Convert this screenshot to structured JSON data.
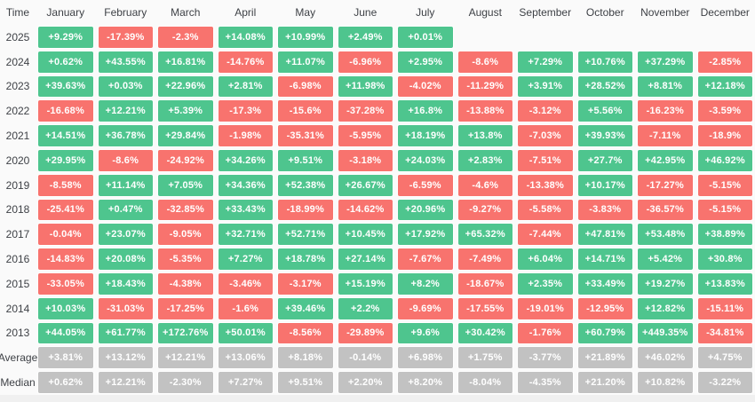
{
  "table": {
    "corner_label": "Time",
    "months": [
      "January",
      "February",
      "March",
      "April",
      "May",
      "June",
      "July",
      "August",
      "September",
      "October",
      "November",
      "December"
    ],
    "rows": [
      {
        "label": "2025",
        "type": "year",
        "values": [
          "+9.29%",
          "-17.39%",
          "-2.3%",
          "+14.08%",
          "+10.99%",
          "+2.49%",
          "+0.01%",
          "",
          "",
          "",
          "",
          ""
        ]
      },
      {
        "label": "2024",
        "type": "year",
        "values": [
          "+0.62%",
          "+43.55%",
          "+16.81%",
          "-14.76%",
          "+11.07%",
          "-6.96%",
          "+2.95%",
          "-8.6%",
          "+7.29%",
          "+10.76%",
          "+37.29%",
          "-2.85%"
        ]
      },
      {
        "label": "2023",
        "type": "year",
        "values": [
          "+39.63%",
          "+0.03%",
          "+22.96%",
          "+2.81%",
          "-6.98%",
          "+11.98%",
          "-4.02%",
          "-11.29%",
          "+3.91%",
          "+28.52%",
          "+8.81%",
          "+12.18%"
        ]
      },
      {
        "label": "2022",
        "type": "year",
        "values": [
          "-16.68%",
          "+12.21%",
          "+5.39%",
          "-17.3%",
          "-15.6%",
          "-37.28%",
          "+16.8%",
          "-13.88%",
          "-3.12%",
          "+5.56%",
          "-16.23%",
          "-3.59%"
        ]
      },
      {
        "label": "2021",
        "type": "year",
        "values": [
          "+14.51%",
          "+36.78%",
          "+29.84%",
          "-1.98%",
          "-35.31%",
          "-5.95%",
          "+18.19%",
          "+13.8%",
          "-7.03%",
          "+39.93%",
          "-7.11%",
          "-18.9%"
        ]
      },
      {
        "label": "2020",
        "type": "year",
        "values": [
          "+29.95%",
          "-8.6%",
          "-24.92%",
          "+34.26%",
          "+9.51%",
          "-3.18%",
          "+24.03%",
          "+2.83%",
          "-7.51%",
          "+27.7%",
          "+42.95%",
          "+46.92%"
        ]
      },
      {
        "label": "2019",
        "type": "year",
        "values": [
          "-8.58%",
          "+11.14%",
          "+7.05%",
          "+34.36%",
          "+52.38%",
          "+26.67%",
          "-6.59%",
          "-4.6%",
          "-13.38%",
          "+10.17%",
          "-17.27%",
          "-5.15%"
        ]
      },
      {
        "label": "2018",
        "type": "year",
        "values": [
          "-25.41%",
          "+0.47%",
          "-32.85%",
          "+33.43%",
          "-18.99%",
          "-14.62%",
          "+20.96%",
          "-9.27%",
          "-5.58%",
          "-3.83%",
          "-36.57%",
          "-5.15%"
        ]
      },
      {
        "label": "2017",
        "type": "year",
        "values": [
          "-0.04%",
          "+23.07%",
          "-9.05%",
          "+32.71%",
          "+52.71%",
          "+10.45%",
          "+17.92%",
          "+65.32%",
          "-7.44%",
          "+47.81%",
          "+53.48%",
          "+38.89%"
        ]
      },
      {
        "label": "2016",
        "type": "year",
        "values": [
          "-14.83%",
          "+20.08%",
          "-5.35%",
          "+7.27%",
          "+18.78%",
          "+27.14%",
          "-7.67%",
          "-7.49%",
          "+6.04%",
          "+14.71%",
          "+5.42%",
          "+30.8%"
        ]
      },
      {
        "label": "2015",
        "type": "year",
        "values": [
          "-33.05%",
          "+18.43%",
          "-4.38%",
          "-3.46%",
          "-3.17%",
          "+15.19%",
          "+8.2%",
          "-18.67%",
          "+2.35%",
          "+33.49%",
          "+19.27%",
          "+13.83%"
        ]
      },
      {
        "label": "2014",
        "type": "year",
        "values": [
          "+10.03%",
          "-31.03%",
          "-17.25%",
          "-1.6%",
          "+39.46%",
          "+2.2%",
          "-9.69%",
          "-17.55%",
          "-19.01%",
          "-12.95%",
          "+12.82%",
          "-15.11%"
        ]
      },
      {
        "label": "2013",
        "type": "year",
        "values": [
          "+44.05%",
          "+61.77%",
          "+172.76%",
          "+50.01%",
          "-8.56%",
          "-29.89%",
          "+9.6%",
          "+30.42%",
          "-1.76%",
          "+60.79%",
          "+449.35%",
          "-34.81%"
        ]
      },
      {
        "label": "Average",
        "type": "stat",
        "values": [
          "+3.81%",
          "+13.12%",
          "+12.21%",
          "+13.06%",
          "+8.18%",
          "-0.14%",
          "+6.98%",
          "+1.75%",
          "-3.77%",
          "+21.89%",
          "+46.02%",
          "+4.75%"
        ]
      },
      {
        "label": "Median",
        "type": "stat",
        "values": [
          "+0.62%",
          "+12.21%",
          "-2.30%",
          "+7.27%",
          "+9.51%",
          "+2.20%",
          "+8.20%",
          "-8.04%",
          "-4.35%",
          "+21.20%",
          "+10.82%",
          "-3.22%"
        ]
      }
    ]
  },
  "colors": {
    "positive": "#4EC58E",
    "negative": "#F8736E",
    "neutral": "#C2C2C2",
    "background": "#FAFAFA",
    "header_text": "#3E4146",
    "cell_text": "#FFFFFF",
    "footer_strip": "#F0F0F0"
  }
}
